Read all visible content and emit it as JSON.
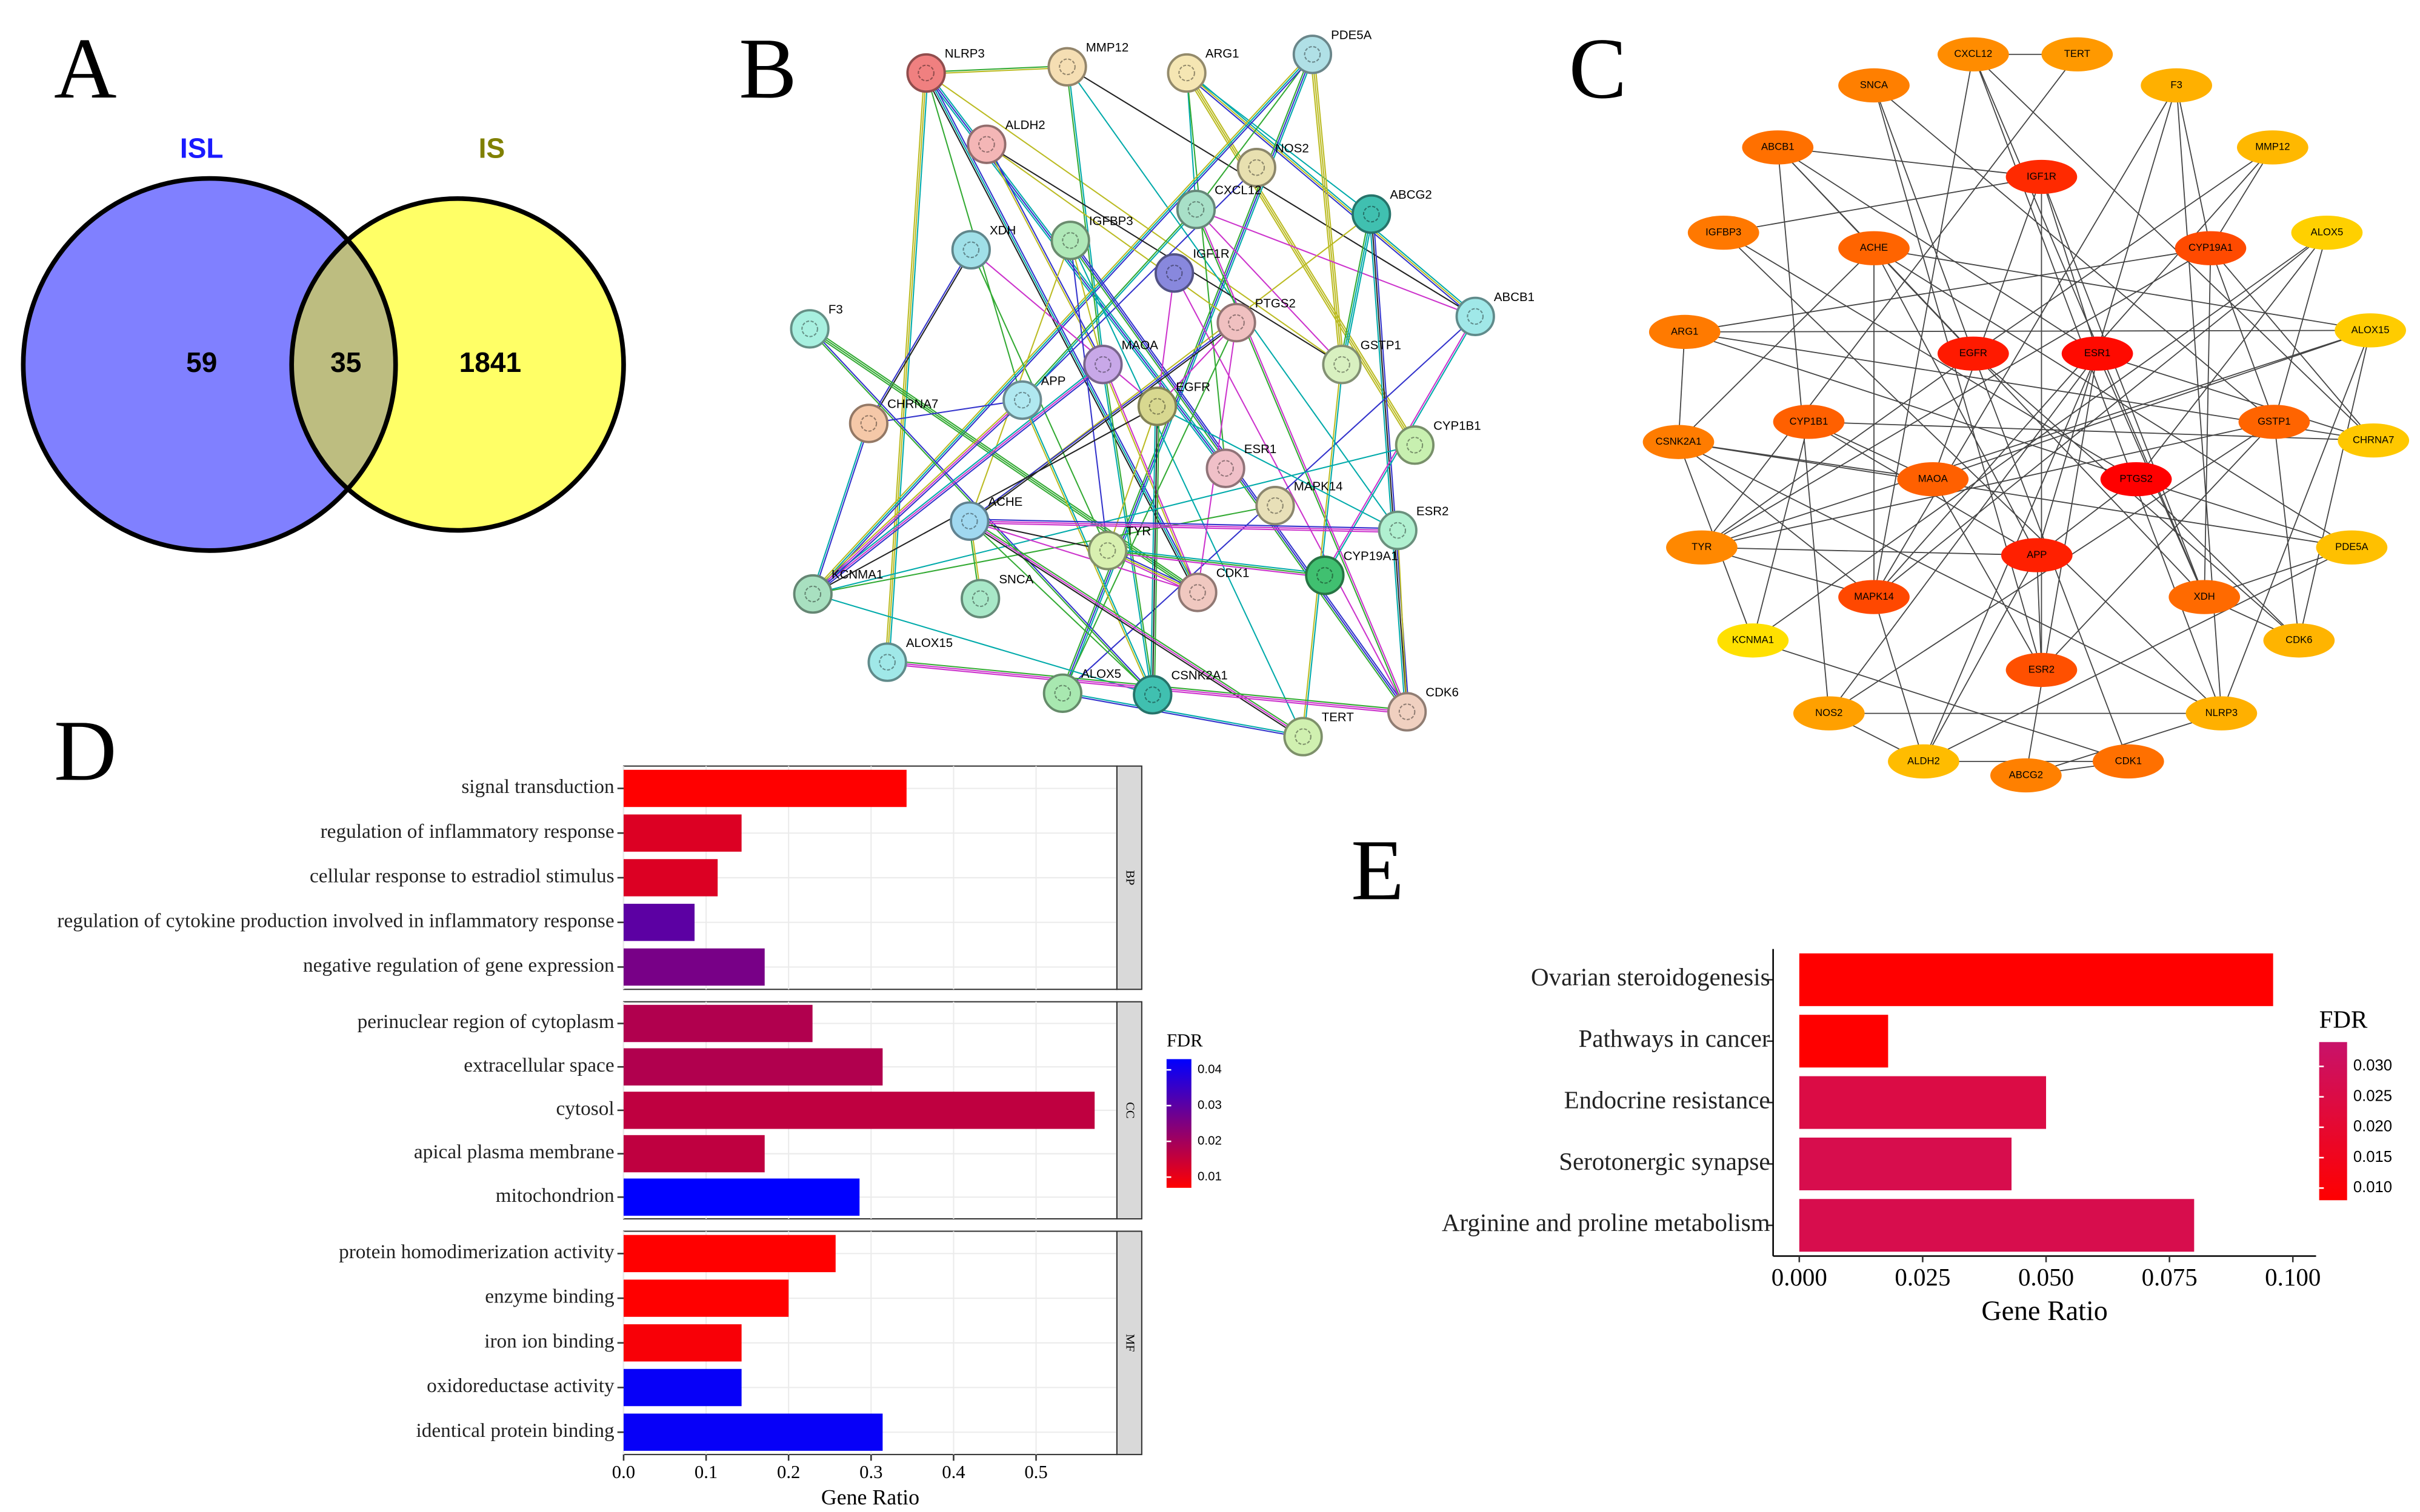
{
  "chart_data": [
    {
      "type": "venn",
      "label": "A",
      "sets": [
        {
          "name": "ISL",
          "color": "#8080ff",
          "label_color": "#1a1aff",
          "value": 59
        },
        {
          "name": "IS",
          "color": "#ffff66",
          "label_color": "#808000",
          "value": 1841
        }
      ],
      "overlap": 35,
      "overlap_color": "#bdbd80"
    },
    {
      "type": "network",
      "label": "B",
      "style": "string",
      "nodes": [
        {
          "label": "NLRP3",
          "color": "#f08080"
        },
        {
          "label": "MMP12",
          "color": "#f5deb3"
        },
        {
          "label": "ARG1",
          "color": "#f5e6b3"
        },
        {
          "label": "PDE5A",
          "color": "#b0e0e6"
        },
        {
          "label": "ALDH2",
          "color": "#f4b6b6"
        },
        {
          "label": "NOS2",
          "color": "#e8e0b0"
        },
        {
          "label": "CXCL12",
          "color": "#a8e0c8"
        },
        {
          "label": "ABCG2",
          "color": "#40c0b0"
        },
        {
          "label": "XDH",
          "color": "#a0e0e8"
        },
        {
          "label": "IGFBP3",
          "color": "#b0e8b8"
        },
        {
          "label": "IGF1R",
          "color": "#8888dd"
        },
        {
          "label": "ABCB1",
          "color": "#a0e8e8"
        },
        {
          "label": "F3",
          "color": "#a8f0e0"
        },
        {
          "label": "PTGS2",
          "color": "#f0c0c0"
        },
        {
          "label": "GSTP1",
          "color": "#d8f0c0"
        },
        {
          "label": "MAOA",
          "color": "#c8a8e8"
        },
        {
          "label": "APP",
          "color": "#b0e8f0"
        },
        {
          "label": "EGFR",
          "color": "#d8d890"
        },
        {
          "label": "CHRNA7",
          "color": "#f5c8a8"
        },
        {
          "label": "CYP1B1",
          "color": "#c8f0b0"
        },
        {
          "label": "ESR1",
          "color": "#f0c0c8"
        },
        {
          "label": "MAPK14",
          "color": "#e8e0b8"
        },
        {
          "label": "ACHE",
          "color": "#a0d8f0"
        },
        {
          "label": "ESR2",
          "color": "#b0f0d0"
        },
        {
          "label": "TYR",
          "color": "#d8f0b0"
        },
        {
          "label": "CYP19A1",
          "color": "#40c070"
        },
        {
          "label": "SNCA",
          "color": "#a8e8c8"
        },
        {
          "label": "CDK1",
          "color": "#f0c8c0"
        },
        {
          "label": "KCNMA1",
          "color": "#a8e0c0"
        },
        {
          "label": "ALOX15",
          "color": "#a0e8e8"
        },
        {
          "label": "ALOX5",
          "color": "#a8e8b0"
        },
        {
          "label": "CSNK2A1",
          "color": "#40c0b0"
        },
        {
          "label": "CDK6",
          "color": "#f0d0c0"
        },
        {
          "label": "TERT",
          "color": "#d0f0b0"
        }
      ]
    },
    {
      "type": "network",
      "label": "C",
      "style": "cytoscape",
      "nodes": [
        {
          "label": "CXCL12",
          "color": "#ff8c00"
        },
        {
          "label": "TERT",
          "color": "#ff9900"
        },
        {
          "label": "SNCA",
          "color": "#ff7f00"
        },
        {
          "label": "F3",
          "color": "#ffb000"
        },
        {
          "label": "ABCB1",
          "color": "#ff7000"
        },
        {
          "label": "MMP12",
          "color": "#ffb800"
        },
        {
          "label": "IGF1R",
          "color": "#ff2a00"
        },
        {
          "label": "IGFBP3",
          "color": "#ff7800"
        },
        {
          "label": "ACHE",
          "color": "#ff6400"
        },
        {
          "label": "CYP19A1",
          "color": "#ff4a00"
        },
        {
          "label": "ALOX5",
          "color": "#ffd000"
        },
        {
          "label": "ALOX15",
          "color": "#ffcc00"
        },
        {
          "label": "ARG1",
          "color": "#ff7a00"
        },
        {
          "label": "EGFR",
          "color": "#ff1a00"
        },
        {
          "label": "ESR1",
          "color": "#ff0a00"
        },
        {
          "label": "CSNK2A1",
          "color": "#ff7c00"
        },
        {
          "label": "CYP1B1",
          "color": "#ff6000"
        },
        {
          "label": "GSTP1",
          "color": "#ff6400"
        },
        {
          "label": "CHRNA7",
          "color": "#ffc800"
        },
        {
          "label": "MAOA",
          "color": "#ff6000"
        },
        {
          "label": "PTGS2",
          "color": "#ff0000"
        },
        {
          "label": "TYR",
          "color": "#ff8800"
        },
        {
          "label": "APP",
          "color": "#ff2000"
        },
        {
          "label": "PDE5A",
          "color": "#ffc000"
        },
        {
          "label": "MAPK14",
          "color": "#ff4800"
        },
        {
          "label": "XDH",
          "color": "#ff6a00"
        },
        {
          "label": "KCNMA1",
          "color": "#ffe000"
        },
        {
          "label": "CDK6",
          "color": "#ffb400"
        },
        {
          "label": "ESR2",
          "color": "#ff5000"
        },
        {
          "label": "NOS2",
          "color": "#ffa000"
        },
        {
          "label": "NLRP3",
          "color": "#ffb000"
        },
        {
          "label": "ALDH2",
          "color": "#ffbc00"
        },
        {
          "label": "ABCG2",
          "color": "#ff8000"
        },
        {
          "label": "CDK1",
          "color": "#ff7000"
        }
      ]
    },
    {
      "type": "bar",
      "label": "D",
      "orientation": "horizontal",
      "grid": true,
      "facets": [
        "BP",
        "CC",
        "MF"
      ],
      "facet": [
        "BP",
        "BP",
        "BP",
        "BP",
        "BP",
        "CC",
        "CC",
        "CC",
        "CC",
        "CC",
        "MF",
        "MF",
        "MF",
        "MF",
        "MF"
      ],
      "categories": [
        "signal transduction",
        "regulation of inflammatory response",
        "cellular response to estradiol stimulus",
        "regulation of cytokine production involved in inflammatory response",
        "negative regulation of gene expression",
        "perinuclear region of cytoplasm",
        "extracellular space",
        "cytosol",
        "apical plasma membrane",
        "mitochondrion",
        "protein homodimerization activity",
        "enzyme binding",
        "iron ion binding",
        "oxidoreductase activity",
        "identical protein binding"
      ],
      "values": [
        0.343,
        0.143,
        0.114,
        0.086,
        0.171,
        0.229,
        0.314,
        0.571,
        0.171,
        0.286,
        0.257,
        0.2,
        0.143,
        0.143,
        0.314
      ],
      "fdr": [
        0.005,
        0.012,
        0.012,
        0.03,
        0.026,
        0.018,
        0.018,
        0.016,
        0.016,
        0.045,
        0.006,
        0.006,
        0.008,
        0.042,
        0.042
      ],
      "xlim": [
        0,
        0.598
      ],
      "xticks": [
        {
          "value": 0,
          "label": "0.0"
        },
        0.1,
        0.2,
        0.3,
        0.4,
        0.5
      ],
      "xlabel": "Gene Ratio",
      "legend_title": "FDR",
      "low_color": "#ff0000",
      "high_color": "#0000ff",
      "colorbar_lim": [
        0.007,
        0.043
      ],
      "colorbar_ticks": [
        0.01,
        0.02,
        0.03,
        0.04
      ]
    },
    {
      "type": "bar",
      "label": "E",
      "orientation": "horizontal",
      "grid": false,
      "categories": [
        "Ovarian steroidogenesis",
        "Pathways in cancer",
        "Endocrine resistance",
        "Serotonergic synapse",
        "Arginine and proline metabolism"
      ],
      "values": [
        0.096,
        0.018,
        0.05,
        0.043,
        0.08
      ],
      "fdr": [
        0.007,
        0.008,
        0.025,
        0.027,
        0.027
      ],
      "xlim": [
        -0.0053,
        0.1047
      ],
      "xticks": [
        {
          "value": 0,
          "label": "0.000"
        },
        {
          "value": 0.025,
          "label": "0.025"
        },
        {
          "value": 0.05,
          "label": "0.050"
        },
        {
          "value": 0.075,
          "label": "0.075"
        },
        {
          "value": 0.1,
          "label": "0.100"
        }
      ],
      "xlabel": "Gene Ratio",
      "legend_title": "FDR",
      "low_color": "#ff0000",
      "high_color": "#c8126a",
      "colorbar_lim": [
        0.008,
        0.034
      ],
      "colorbar_ticks": [
        {
          "value": 0.01,
          "label": "0.010"
        },
        {
          "value": 0.015,
          "label": "0.015"
        },
        {
          "value": 0.02,
          "label": "0.020"
        },
        {
          "value": 0.025,
          "label": "0.025"
        },
        {
          "value": 0.03,
          "label": "0.030"
        }
      ]
    }
  ]
}
